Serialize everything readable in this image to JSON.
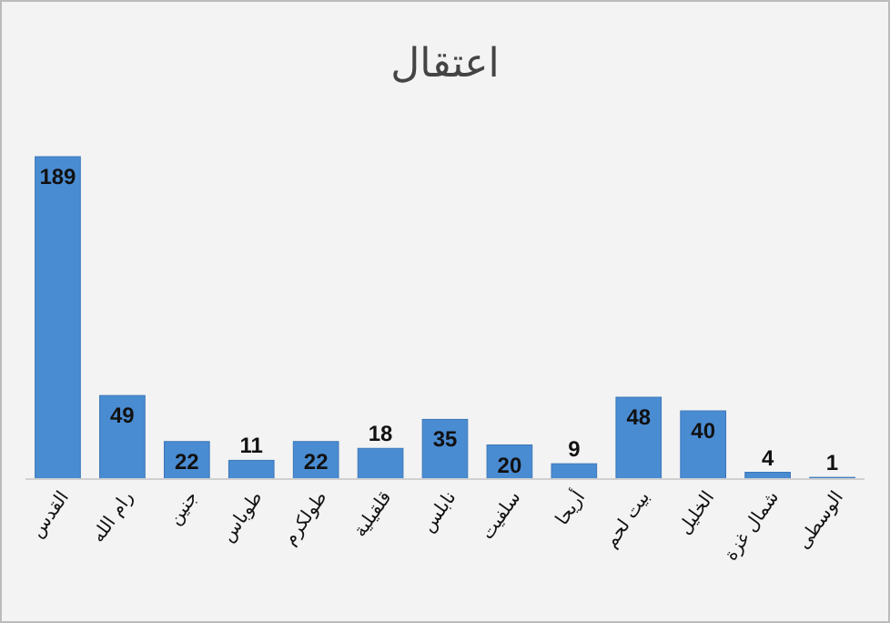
{
  "chart_data": {
    "type": "bar",
    "title": "اعتقال",
    "categories": [
      "القدس",
      "رام الله",
      "جنين",
      "طوباس",
      "طولكرم",
      "قلقيلية",
      "نابلس",
      "سلفيت",
      "أريحا",
      "بيت لحم",
      "الخليل",
      "شمال غزة",
      "الوسطى"
    ],
    "values": [
      189,
      49,
      22,
      11,
      22,
      18,
      35,
      20,
      9,
      48,
      40,
      4,
      1
    ],
    "color": "#4a8cd2",
    "data_labels": true
  }
}
